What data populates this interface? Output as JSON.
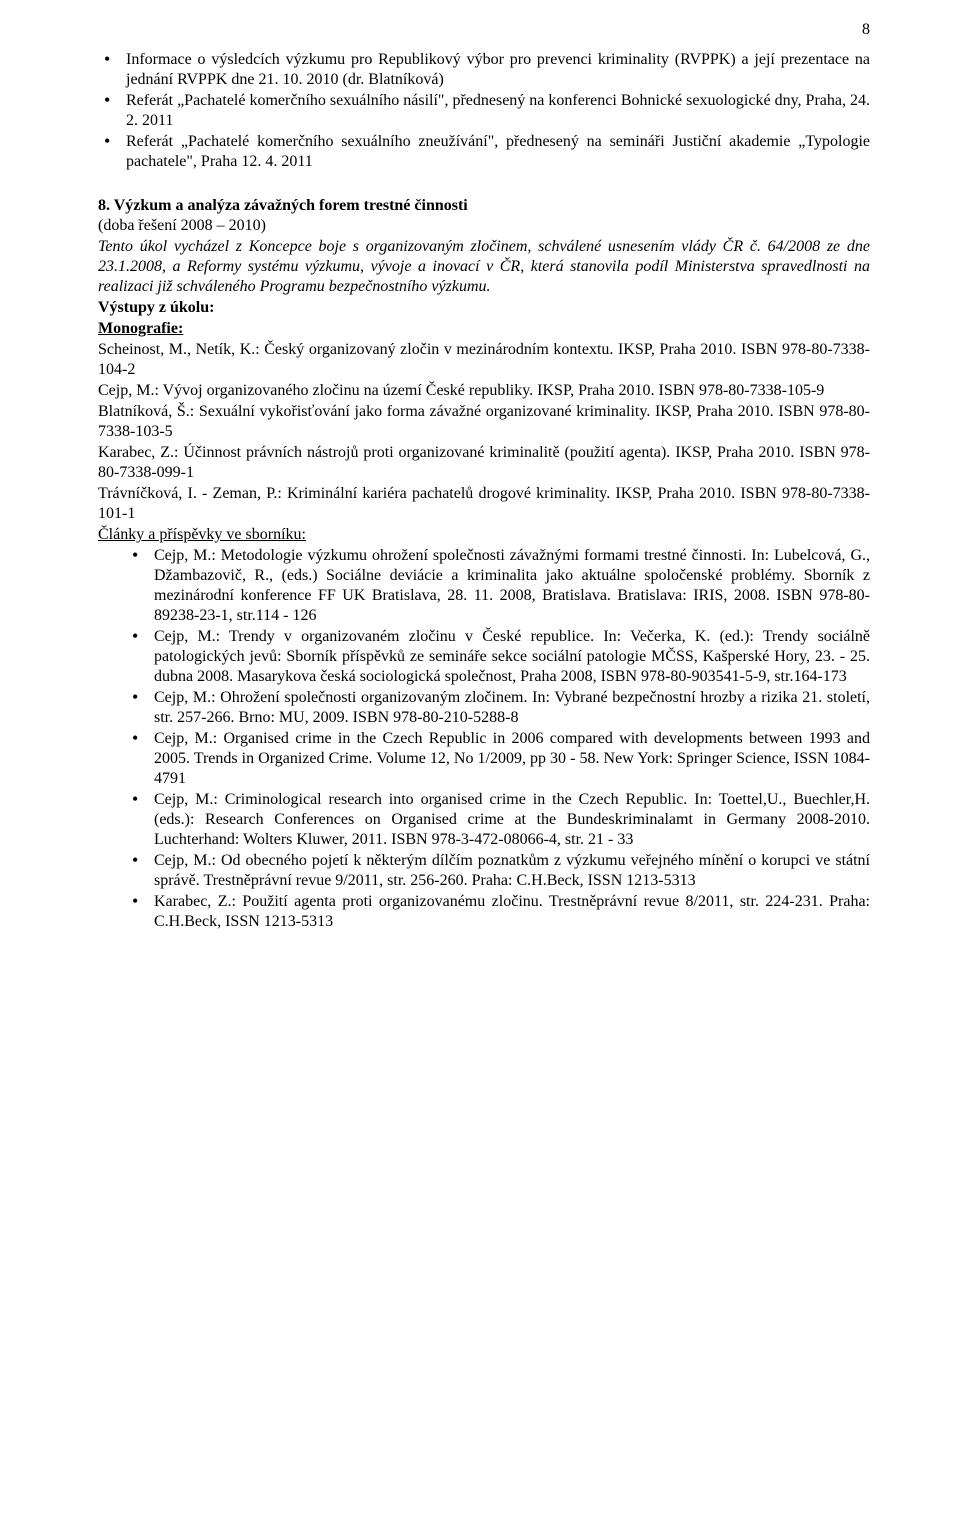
{
  "pageNumber": "8",
  "topBullets": [
    "Informace o výsledcích výzkumu pro Republikový výbor pro prevenci kriminality (RVPPK) a její prezentace na jednání RVPPK dne 21. 10. 2010 (dr. Blatníková)",
    "Referát „Pachatelé komerčního sexuálního násilí\", přednesený na konferenci Bohnické sexuologické dny, Praha, 24. 2. 2011",
    "Referát „Pachatelé komerčního sexuálního zneužívání\", přednesený na semináři Justiční akademie „Typologie pachatele\", Praha 12. 4. 2011"
  ],
  "section": {
    "title": "8. Výzkum a analýza závažných forem trestné činnosti",
    "subheadNormal": "(doba řešení 2008 – 2010)",
    "italic1": "Tento úkol vycházel z Koncepce boje s organizovaným zločinem, schválené ",
    "italic2": "usnesením vlády ČR č. 64/2008 ze dne 23.1.2008, a Reformy systému výzkumu, vývoje a inovací v ČR, která stanovila podíl Ministerstva spravedlnosti na realizaci již schváleného Programu bezpečnostního výzkumu.",
    "outputs": "Výstupy z úkolu:",
    "mono": "Monografie:",
    "monoEntries": [
      "Scheinost, M., Netík, K.: Český organizovaný zločin v mezinárodním kontextu. IKSP, Praha 2010. ISBN 978-80-7338-104-2",
      "Cejp, M.: Vývoj organizovaného zločinu na území České republiky. IKSP, Praha 2010. ISBN 978-80-7338-105-9",
      "Blatníková, Š.: Sexuální vykořisťování jako forma závažné organizované kriminality. IKSP, Praha 2010. ISBN 978-80-7338-103-5",
      "Karabec, Z.: Účinnost právních nástrojů proti organizované kriminalitě (použití agenta). IKSP, Praha 2010. ISBN 978-80-7338-099-1",
      "Trávníčková, I. - Zeman, P.: Kriminální kariéra pachatelů drogové kriminality. IKSP, Praha 2010. ISBN 978-80-7338-101-1"
    ],
    "articles": "Články a příspěvky ve sborníku:",
    "articleEntries": [
      "Cejp, M.: Metodologie výzkumu ohrožení společnosti závažnými formami trestné činnosti. In: Lubelcová, G., Džambazovič, R., (eds.) Sociálne deviácie a kriminalita jako aktuálne spoločenské problémy. Sborník z mezinárodní konference FF UK Bratislava, 28. 11. 2008, Bratislava. Bratislava: IRIS, 2008. ISBN 978-80-89238-23-1, str.114 - 126",
      "Cejp, M.: Trendy v organizovaném zločinu v České republice. In: Večerka, K. (ed.): Trendy sociálně patologických jevů: Sborník příspěvků ze semináře sekce sociální patologie MČSS, Kašperské Hory, 23. - 25. dubna 2008. Masarykova česká sociologická společnost, Praha 2008, ISBN 978-80-903541-5-9, str.164-173",
      "Cejp, M.: Ohrožení společnosti organizovaným zločinem. In: Vybrané bezpečnostní hrozby a rizika 21. století, str. 257-266. Brno: MU, 2009. ISBN 978-80-210-5288-8",
      "Cejp, M.: Organised crime in the Czech Republic in 2006 compared with developments between 1993 and 2005. Trends in Organized Crime. Volume 12, No 1/2009, pp 30 - 58. New York: Springer Science, ISSN 1084-4791",
      "Cejp, M.: Criminological research into organised crime in the Czech Republic. In: Toettel,U., Buechler,H. (eds.): Research Conferences on Organised crime at the Bundeskriminalamt in Germany 2008-2010. Luchterhand: Wolters Kluwer, 2011. ISBN 978-3-472-08066-4, str. 21 - 33",
      "Cejp, M.:  Od obecného pojetí k některým dílčím poznatkům z výzkumu veřejného mínění o korupci ve státní správě. Trestněprávní revue 9/2011, str. 256-260. Praha: C.H.Beck, ISSN 1213-5313",
      "Karabec, Z.: Použití agenta proti organizovanému zločinu. Trestněprávní revue 8/2011, str. 224-231. Praha: C.H.Beck, ISSN 1213-5313"
    ]
  }
}
